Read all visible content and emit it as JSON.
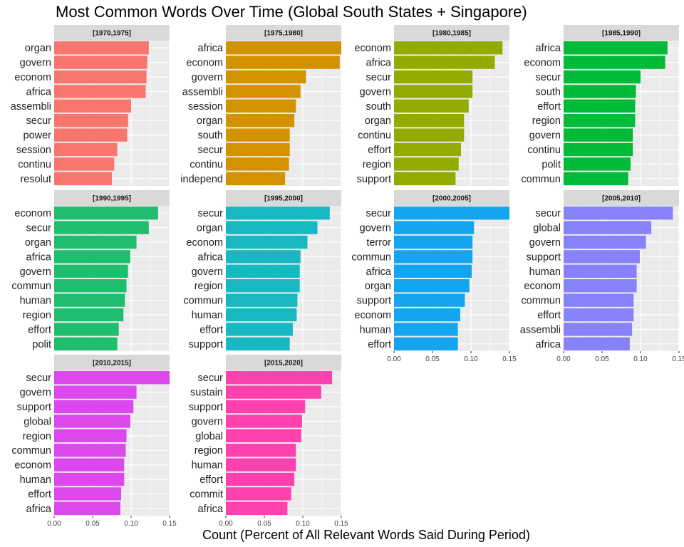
{
  "chart_data": {
    "type": "bar",
    "orientation": "horizontal",
    "title": "Most Common Words Over Time (Global South States + Singapore)",
    "xlabel": "Count (Percent of All Relevant Words Said During Period)",
    "ylabel": "",
    "xlim": [
      0,
      0.15
    ],
    "xticks": [
      0,
      0.05,
      0.1,
      0.15
    ],
    "xtick_labels": [
      "0.00",
      "0.05",
      "0.10",
      "0.15"
    ],
    "grid": true,
    "legend": "none",
    "facet_layout": {
      "rows": 3,
      "cols": 4
    },
    "panels": [
      {
        "label": "[1970,1975]",
        "color": "#F8766D",
        "categories": [
          "organ",
          "govern",
          "econom",
          "africa",
          "assembli",
          "secur",
          "power",
          "session",
          "continu",
          "resolut"
        ],
        "values": [
          0.123,
          0.121,
          0.12,
          0.119,
          0.1,
          0.096,
          0.095,
          0.082,
          0.078,
          0.075
        ]
      },
      {
        "label": "[1975,1980]",
        "color": "#D39200",
        "categories": [
          "africa",
          "econom",
          "govern",
          "assembli",
          "session",
          "organ",
          "south",
          "secur",
          "continu",
          "independ"
        ],
        "values": [
          0.151,
          0.148,
          0.104,
          0.097,
          0.091,
          0.089,
          0.083,
          0.083,
          0.082,
          0.077
        ]
      },
      {
        "label": "[1980,1985]",
        "color": "#93AA00",
        "categories": [
          "econom",
          "africa",
          "secur",
          "govern",
          "south",
          "organ",
          "continu",
          "effort",
          "region",
          "support"
        ],
        "values": [
          0.141,
          0.131,
          0.102,
          0.102,
          0.097,
          0.091,
          0.091,
          0.087,
          0.084,
          0.08
        ]
      },
      {
        "label": "[1985,1990]",
        "color": "#00BA38",
        "categories": [
          "africa",
          "econom",
          "secur",
          "south",
          "effort",
          "region",
          "govern",
          "continu",
          "polit",
          "commun"
        ],
        "values": [
          0.135,
          0.132,
          0.1,
          0.094,
          0.093,
          0.093,
          0.09,
          0.09,
          0.087,
          0.084
        ]
      },
      {
        "label": "[1990,1995]",
        "color": "#1FBE6F",
        "categories": [
          "econom",
          "secur",
          "organ",
          "africa",
          "govern",
          "commun",
          "human",
          "region",
          "effort",
          "polit"
        ],
        "values": [
          0.135,
          0.123,
          0.107,
          0.099,
          0.096,
          0.094,
          0.092,
          0.09,
          0.084,
          0.082
        ]
      },
      {
        "label": "[1995,2000]",
        "color": "#17B8C2",
        "categories": [
          "secur",
          "organ",
          "econom",
          "africa",
          "govern",
          "region",
          "commun",
          "human",
          "effort",
          "support"
        ],
        "values": [
          0.135,
          0.119,
          0.106,
          0.097,
          0.096,
          0.096,
          0.093,
          0.092,
          0.087,
          0.083
        ]
      },
      {
        "label": "[2000,2005]",
        "color": "#15A5F0",
        "categories": [
          "secur",
          "govern",
          "terror",
          "commun",
          "africa",
          "organ",
          "support",
          "econom",
          "human",
          "effort"
        ],
        "values": [
          0.157,
          0.104,
          0.102,
          0.102,
          0.101,
          0.098,
          0.092,
          0.086,
          0.083,
          0.083
        ]
      },
      {
        "label": "[2005,2010]",
        "color": "#8781FA",
        "categories": [
          "secur",
          "global",
          "govern",
          "support",
          "human",
          "econom",
          "commun",
          "effort",
          "assembli",
          "africa"
        ],
        "values": [
          0.142,
          0.114,
          0.107,
          0.099,
          0.095,
          0.095,
          0.091,
          0.091,
          0.089,
          0.086
        ]
      },
      {
        "label": "[2010,2015]",
        "color": "#DC47EE",
        "categories": [
          "secur",
          "govern",
          "support",
          "global",
          "region",
          "commun",
          "econom",
          "human",
          "effort",
          "africa"
        ],
        "values": [
          0.151,
          0.107,
          0.103,
          0.099,
          0.094,
          0.093,
          0.091,
          0.091,
          0.087,
          0.086
        ]
      },
      {
        "label": "[2015,2020]",
        "color": "#FF41B0",
        "categories": [
          "secur",
          "sustain",
          "support",
          "govern",
          "global",
          "region",
          "human",
          "effort",
          "commit",
          "africa"
        ],
        "values": [
          0.138,
          0.124,
          0.103,
          0.099,
          0.098,
          0.091,
          0.091,
          0.089,
          0.085,
          0.08
        ]
      }
    ]
  }
}
